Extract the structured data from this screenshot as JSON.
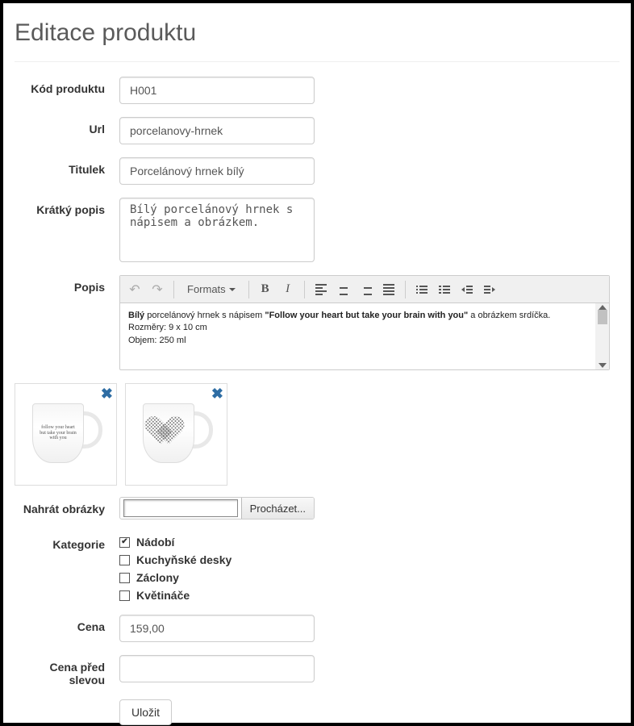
{
  "page_title": "Editace produktu",
  "labels": {
    "code": "Kód produktu",
    "url": "Url",
    "title": "Titulek",
    "short_desc": "Krátký popis",
    "desc": "Popis",
    "upload": "Nahrát obrázky",
    "categories": "Kategorie",
    "price": "Cena",
    "price_before": "Cena před slevou"
  },
  "fields": {
    "code": "H001",
    "url": "porcelanovy-hrnek",
    "title": "Porcelánový hrnek bílý",
    "short_desc": "Bílý porcelánový hrnek s nápisem a obrázkem.",
    "price": "159,00",
    "price_before": ""
  },
  "editor": {
    "formats_label": "Formats",
    "content_html": "<b>Bílý</b> porcelánový hrnek s nápisem <b>\"Follow your heart but take your brain with you\"</b> a obrázkem srdíčka.<br>Rozměry: 9 x 10 cm<br>Objem: 250 ml"
  },
  "images": [
    {
      "id": "mug-front",
      "caption": "follow your heart but take your brain with you"
    },
    {
      "id": "mug-back",
      "caption": "heart"
    }
  ],
  "file_browse_label": "Procházet...",
  "categories": [
    {
      "label": "Nádobí",
      "checked": true
    },
    {
      "label": "Kuchyňské desky",
      "checked": false
    },
    {
      "label": "Záclony",
      "checked": false
    },
    {
      "label": "Květináče",
      "checked": false
    }
  ],
  "submit_label": "Uložit",
  "colors": {
    "border": "#cccccc",
    "text": "#333333",
    "toolbar_bg": "#f0f0f0",
    "remove_icon": "#2e6da4"
  }
}
